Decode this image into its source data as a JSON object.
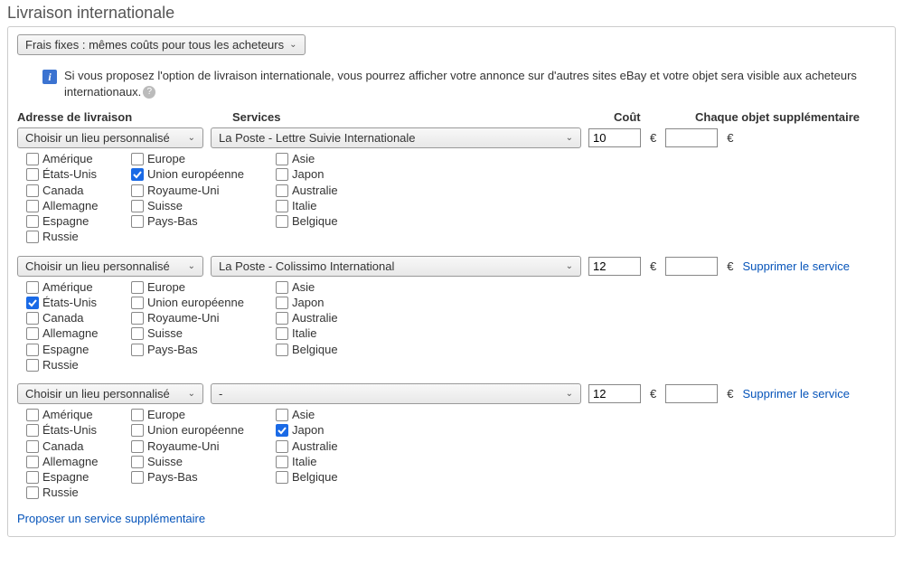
{
  "title": "Livraison internationale",
  "pricing_select": "Frais fixes : mêmes coûts pour tous les acheteurs",
  "info_text": "Si vous proposez l'option de livraison internationale, vous pourrez afficher votre annonce sur d'autres sites eBay et votre objet sera visible aux acheteurs internationaux.",
  "headers": {
    "loc": "Adresse de livraison",
    "svc": "Services",
    "cost": "Coût",
    "extra": "Chaque objet supplémentaire"
  },
  "location_select": "Choisir un lieu personnalisé",
  "currency": "€",
  "remove_link": "Supprimer le service",
  "add_link": "Proposer un service supplémentaire",
  "countries": {
    "col1": [
      "Amérique",
      "États-Unis",
      "Canada",
      "Allemagne",
      "Espagne",
      "Russie"
    ],
    "col2": [
      "Europe",
      "Union européenne",
      "Royaume-Uni",
      "Suisse",
      "Pays-Bas"
    ],
    "col3": [
      "Asie",
      "Japon",
      "Australie",
      "Italie",
      "Belgique"
    ]
  },
  "services": [
    {
      "service": "La Poste - Lettre Suivie Internationale",
      "cost": "10",
      "extra": "",
      "removable": false,
      "checked": [
        "Union européenne"
      ]
    },
    {
      "service": "La Poste - Colissimo International",
      "cost": "12",
      "extra": "",
      "removable": true,
      "checked": [
        "États-Unis"
      ]
    },
    {
      "service": "-",
      "cost": "12",
      "extra": "",
      "removable": true,
      "checked": [
        "Japon"
      ]
    }
  ]
}
